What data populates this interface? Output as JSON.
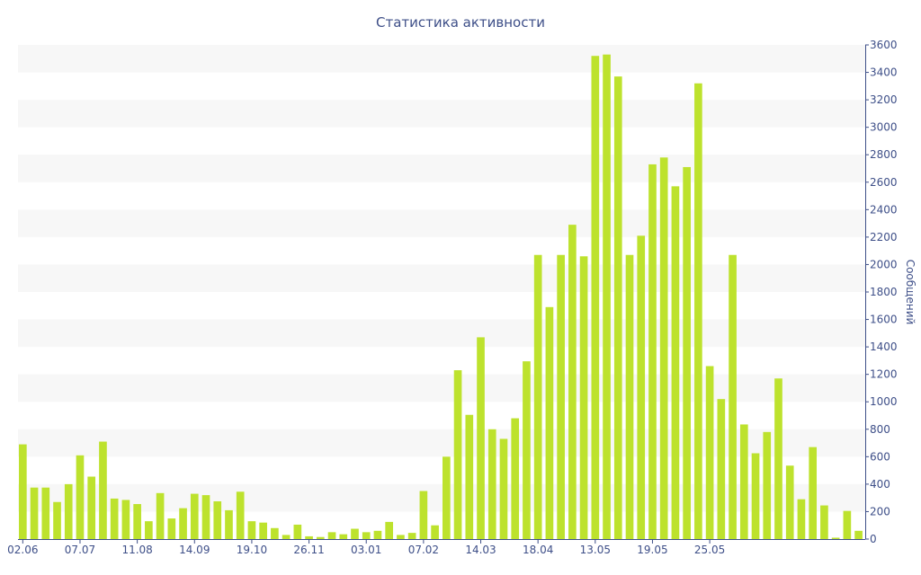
{
  "colors": {
    "bar": "#bde22d",
    "text": "#3e4f88",
    "axis": "#3e4f88",
    "band": "#f7f7f7",
    "background": "#ffffff"
  },
  "chart_data": {
    "type": "bar",
    "title": "Статистика активности",
    "ylabel": "Сообщений",
    "xlabel": "",
    "ylim": [
      0,
      3600
    ],
    "y_ticks": [
      0,
      200,
      400,
      600,
      800,
      1000,
      1200,
      1400,
      1600,
      1800,
      2000,
      2200,
      2400,
      2600,
      2800,
      3000,
      3200,
      3400,
      3600
    ],
    "y_axis_position": "right",
    "grid": "alternating horizontal bands",
    "legend": "none",
    "x_tick_labels": [
      {
        "index": 0,
        "label": "02.06"
      },
      {
        "index": 5,
        "label": "07.07"
      },
      {
        "index": 10,
        "label": "11.08"
      },
      {
        "index": 15,
        "label": "14.09"
      },
      {
        "index": 20,
        "label": "19.10"
      },
      {
        "index": 25,
        "label": "26.11"
      },
      {
        "index": 30,
        "label": "03.01"
      },
      {
        "index": 35,
        "label": "07.02"
      },
      {
        "index": 40,
        "label": "14.03"
      },
      {
        "index": 45,
        "label": "18.04"
      },
      {
        "index": 50,
        "label": "13.05"
      },
      {
        "index": 55,
        "label": "19.05"
      },
      {
        "index": 60,
        "label": "25.05"
      }
    ],
    "values": [
      690,
      375,
      375,
      270,
      400,
      610,
      455,
      710,
      295,
      285,
      255,
      130,
      335,
      150,
      225,
      330,
      320,
      275,
      210,
      345,
      130,
      120,
      80,
      30,
      105,
      20,
      15,
      50,
      35,
      75,
      50,
      60,
      125,
      30,
      45,
      350,
      100,
      600,
      1230,
      905,
      1470,
      800,
      730,
      880,
      1295,
      2070,
      1690,
      2070,
      2290,
      2060,
      3520,
      3530,
      3370,
      2070,
      2210,
      2730,
      2780,
      2570,
      2710,
      3320,
      1260,
      1020,
      2070,
      835,
      625,
      780,
      1170,
      535,
      290,
      670,
      245,
      10,
      205,
      60
    ]
  }
}
